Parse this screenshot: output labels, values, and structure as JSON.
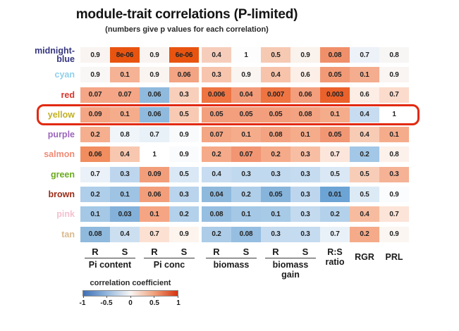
{
  "chart_data": {
    "type": "heatmap",
    "title": "module-trait correlations (P-limited)",
    "subtitle": "(numbers give p values for each correlation)",
    "value_note": "cell numbers are p values; cell fill encodes correlation coefficient from -1 (blue) to 1 (red)",
    "columns": [
      "Pi content R",
      "Pi content S",
      "Pi conc R",
      "Pi conc S",
      "biomass R",
      "biomass S",
      "biomass gain R",
      "biomass gain S",
      "R:S ratio",
      "RGR",
      "PRL"
    ],
    "header_groups": [
      {
        "cols": 2,
        "letters": [
          "R",
          "S"
        ],
        "label": [
          "Pi content"
        ]
      },
      {
        "cols": 2,
        "letters": [
          "R",
          "S"
        ],
        "label": [
          "Pi conc"
        ]
      },
      {
        "cols": 2,
        "letters": [
          "R",
          "S"
        ],
        "label": [
          "biomass"
        ]
      },
      {
        "cols": 2,
        "letters": [
          "R",
          "S"
        ],
        "label": [
          "biomass",
          "gain"
        ]
      },
      {
        "cols": 1,
        "label": [
          "R:S",
          "ratio"
        ]
      },
      {
        "cols": 1,
        "label": [
          "RGR"
        ]
      },
      {
        "cols": 1,
        "label": [
          "PRL"
        ]
      }
    ],
    "rows": [
      {
        "module": "midnight-blue",
        "label_lines": [
          "midnight-",
          "blue"
        ],
        "color": "#35357f",
        "highlight": false,
        "cells": [
          [
            "0.9",
            "#f9f4f1"
          ],
          [
            "8e-06",
            "#e85410"
          ],
          [
            "0.9",
            "#f9f4f1"
          ],
          [
            "6e-06",
            "#e85410"
          ],
          [
            "0.4",
            "#f6cdbb"
          ],
          [
            "1",
            "#fdfdfd"
          ],
          [
            "0.5",
            "#f6c9b3"
          ],
          [
            "0.9",
            "#faf2ec"
          ],
          [
            "0.08",
            "#f0906a"
          ],
          [
            "0.7",
            "#edf2f9"
          ],
          [
            "0.8",
            "#f8f6f5"
          ]
        ]
      },
      {
        "module": "cyan",
        "label_lines": [
          "cyan"
        ],
        "color": "#8fd0ec",
        "highlight": false,
        "cells": [
          [
            "0.9",
            "#f9f7f6"
          ],
          [
            "0.1",
            "#f5b294"
          ],
          [
            "0.9",
            "#faf4f0"
          ],
          [
            "0.06",
            "#f3a483"
          ],
          [
            "0.3",
            "#f7c5ad"
          ],
          [
            "0.9",
            "#faf5f1"
          ],
          [
            "0.4",
            "#f7c3aa"
          ],
          [
            "0.6",
            "#fcefe8"
          ],
          [
            "0.05",
            "#f29a76"
          ],
          [
            "0.1",
            "#f4ad8e"
          ],
          [
            "0.9",
            "#faf5f2"
          ]
        ]
      },
      {
        "module": "red",
        "label_lines": [
          "red"
        ],
        "color": "#d9352b",
        "highlight": false,
        "cells": [
          [
            "0.07",
            "#f4a686"
          ],
          [
            "0.07",
            "#f4a686"
          ],
          [
            "0.06",
            "#90badd"
          ],
          [
            "0.3",
            "#f8cfba"
          ],
          [
            "0.006",
            "#ee7442"
          ],
          [
            "0.04",
            "#f39b78"
          ],
          [
            "0.007",
            "#ee7442"
          ],
          [
            "0.06",
            "#f39e7c"
          ],
          [
            "0.003",
            "#eb612b"
          ],
          [
            "0.6",
            "#fcede5"
          ],
          [
            "0.7",
            "#fbdbcc"
          ]
        ]
      },
      {
        "module": "yellow",
        "label_lines": [
          "yellow"
        ],
        "color": "#c0b021",
        "highlight": true,
        "cells": [
          [
            "0.09",
            "#f4a583"
          ],
          [
            "0.1",
            "#f5ac8b"
          ],
          [
            "0.06",
            "#90badd"
          ],
          [
            "0.5",
            "#f8cab3"
          ],
          [
            "0.05",
            "#f39e7c"
          ],
          [
            "0.05",
            "#f39e7c"
          ],
          [
            "0.05",
            "#f39e7c"
          ],
          [
            "0.08",
            "#f3a381"
          ],
          [
            "0.1",
            "#f5ac8b"
          ],
          [
            "0.4",
            "#c7dcf0"
          ],
          [
            "1",
            "#ffffff"
          ]
        ]
      },
      {
        "module": "purple",
        "label_lines": [
          "purple"
        ],
        "color": "#9c65bd",
        "highlight": false,
        "cells": [
          [
            "0.2",
            "#f5ae8e"
          ],
          [
            "0.8",
            "#f0f5fa"
          ],
          [
            "0.7",
            "#e9f1f8"
          ],
          [
            "0.9",
            "#f8fafc"
          ],
          [
            "0.07",
            "#f4a583"
          ],
          [
            "0.1",
            "#f5ac8b"
          ],
          [
            "0.08",
            "#f3a381"
          ],
          [
            "0.1",
            "#f5ac8b"
          ],
          [
            "0.05",
            "#f29774"
          ],
          [
            "0.4",
            "#f8cbb5"
          ],
          [
            "0.1",
            "#f5ac8b"
          ]
        ]
      },
      {
        "module": "salmon",
        "label_lines": [
          "salmon"
        ],
        "color": "#f08a76",
        "highlight": false,
        "cells": [
          [
            "0.06",
            "#f18d5e"
          ],
          [
            "0.4",
            "#f8c7af"
          ],
          [
            "1",
            "#ffffff"
          ],
          [
            "0.9",
            "#fafbfd"
          ],
          [
            "0.2",
            "#f5aa89"
          ],
          [
            "0.07",
            "#f29573"
          ],
          [
            "0.2",
            "#f5aa89"
          ],
          [
            "0.3",
            "#f7bea3"
          ],
          [
            "0.7",
            "#fce6db"
          ],
          [
            "0.2",
            "#a3c7e6"
          ],
          [
            "0.8",
            "#fdf1eb"
          ]
        ]
      },
      {
        "module": "green",
        "label_lines": [
          "green"
        ],
        "color": "#6aaa1e",
        "highlight": false,
        "cells": [
          [
            "0.7",
            "#eaf1f8"
          ],
          [
            "0.3",
            "#bdd6ee"
          ],
          [
            "0.09",
            "#f39e7b"
          ],
          [
            "0.5",
            "#dae8f5"
          ],
          [
            "0.4",
            "#c7dcf0"
          ],
          [
            "0.3",
            "#c1d9ee"
          ],
          [
            "0.3",
            "#c1d9ee"
          ],
          [
            "0.3",
            "#c5dbef"
          ],
          [
            "0.5",
            "#dae8f5"
          ],
          [
            "0.5",
            "#f8cdb8"
          ],
          [
            "0.3",
            "#f5b295"
          ]
        ]
      },
      {
        "module": "brown",
        "label_lines": [
          "brown"
        ],
        "color": "#9b2b16",
        "highlight": false,
        "cells": [
          [
            "0.2",
            "#afcee9"
          ],
          [
            "0.1",
            "#9ec3e3"
          ],
          [
            "0.06",
            "#f39e7b"
          ],
          [
            "0.3",
            "#b9d4ec"
          ],
          [
            "0.04",
            "#8eb9dd"
          ],
          [
            "0.2",
            "#afcee9"
          ],
          [
            "0.05",
            "#87b4db"
          ],
          [
            "0.3",
            "#bdd6ee"
          ],
          [
            "0.01",
            "#6ca4d5"
          ],
          [
            "0.5",
            "#dceaf6"
          ],
          [
            "0.9",
            "#fbfcfe"
          ]
        ]
      },
      {
        "module": "pink",
        "label_lines": [
          "pink"
        ],
        "color": "#f5bfce",
        "highlight": false,
        "cells": [
          [
            "0.1",
            "#a4c8e6"
          ],
          [
            "0.03",
            "#83b1d9"
          ],
          [
            "0.1",
            "#f5a583"
          ],
          [
            "0.2",
            "#b3d1ea"
          ],
          [
            "0.08",
            "#96bee1"
          ],
          [
            "0.1",
            "#a4c8e6"
          ],
          [
            "0.1",
            "#a7cae7"
          ],
          [
            "0.3",
            "#c3daef"
          ],
          [
            "0.2",
            "#b3d1ea"
          ],
          [
            "0.4",
            "#f7bc9f"
          ],
          [
            "0.7",
            "#fce4d8"
          ]
        ]
      },
      {
        "module": "tan",
        "label_lines": [
          "tan"
        ],
        "color": "#d9ba8d",
        "highlight": false,
        "cells": [
          [
            "0.08",
            "#90badd"
          ],
          [
            "0.4",
            "#cbdff1"
          ],
          [
            "0.7",
            "#fce1d3"
          ],
          [
            "0.9",
            "#fdf4ee"
          ],
          [
            "0.2",
            "#accce8"
          ],
          [
            "0.08",
            "#96bee1"
          ],
          [
            "0.3",
            "#c5dbef"
          ],
          [
            "0.3",
            "#c5dbef"
          ],
          [
            "0.7",
            "#e9f1f8"
          ],
          [
            "0.2",
            "#f5ab89"
          ],
          [
            "0.9",
            "#fcf6f2"
          ]
        ]
      }
    ],
    "legend": {
      "title": "correlation coefficient",
      "ticks": [
        "-1",
        "-0.5",
        "0",
        "0.5",
        "1"
      ],
      "range": [
        -1,
        1
      ],
      "gradient": [
        "#3e6fb5",
        "#f8f6f5",
        "#d63310"
      ]
    },
    "highlight": {
      "row": "yellow",
      "color": "#e2290f"
    }
  }
}
